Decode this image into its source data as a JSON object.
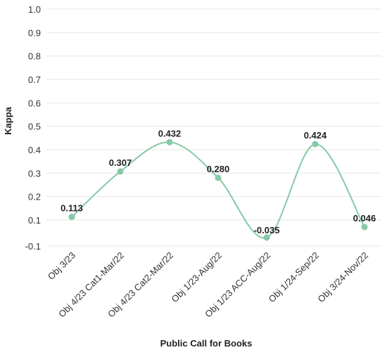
{
  "chart_data": {
    "type": "line",
    "title": "",
    "xlabel": "Public Call for Books",
    "ylabel": "Kappa",
    "categories": [
      "Obj 3/23",
      "Obj 4/23 Cat1-Mar/22",
      "Obj 4/23 Cat2-Mar/22",
      "Obj 1/23-Aug/22",
      "Obj 1/23 ACC-Aug/22",
      "Obj 1/24-Sep/22",
      "Obj 3/24-Nov/22"
    ],
    "values": [
      0.113,
      0.307,
      0.432,
      0.28,
      -0.035,
      0.424,
      0.046
    ],
    "data_labels": [
      "0.113",
      "0.307",
      "0.432",
      "0.280",
      "-0.035",
      "0.424",
      "0.046"
    ],
    "yticks": [
      "-0.1",
      "0.1",
      "0.2",
      "0.3",
      "0.4",
      "0.5",
      "0.6",
      "0.7",
      "0.8",
      "0.9",
      "1.0"
    ],
    "ylim": [
      -0.1,
      1.0
    ],
    "grid": true,
    "line_color": "#86c9a6",
    "marker_color": "#86c9a6",
    "smooth": true
  }
}
